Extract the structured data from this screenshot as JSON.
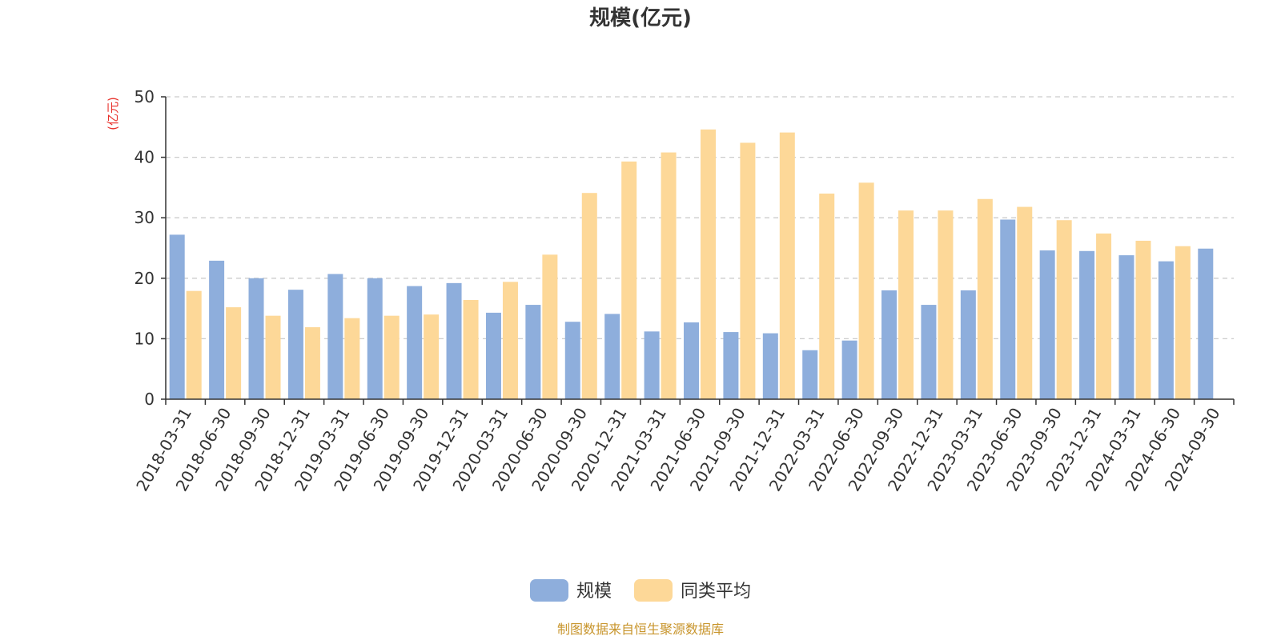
{
  "chart_data": {
    "type": "bar",
    "title": "规模(亿元)",
    "ylabel": "(亿元)",
    "ylim": [
      0,
      50
    ],
    "yticks": [
      0,
      10,
      20,
      30,
      40,
      50
    ],
    "grid": true,
    "legend_position": "bottom",
    "categories": [
      "2018-03-31",
      "2018-06-30",
      "2018-09-30",
      "2018-12-31",
      "2019-03-31",
      "2019-06-30",
      "2019-09-30",
      "2019-12-31",
      "2020-03-31",
      "2020-06-30",
      "2020-09-30",
      "2020-12-31",
      "2021-03-31",
      "2021-06-30",
      "2021-09-30",
      "2021-12-31",
      "2022-03-31",
      "2022-06-30",
      "2022-09-30",
      "2022-12-31",
      "2023-03-31",
      "2023-06-30",
      "2023-09-30",
      "2023-12-31",
      "2024-03-31",
      "2024-06-30",
      "2024-09-30"
    ],
    "series": [
      {
        "name": "规模",
        "color": "#8eaedc",
        "values": [
          27.2,
          22.9,
          20.0,
          18.1,
          20.7,
          20.0,
          18.7,
          19.2,
          14.3,
          15.6,
          12.8,
          14.1,
          11.2,
          12.7,
          11.1,
          10.9,
          8.1,
          9.7,
          18.0,
          15.6,
          18.0,
          29.7,
          24.6,
          24.5,
          23.8,
          22.8,
          24.9
        ]
      },
      {
        "name": "同类平均",
        "color": "#fdd898",
        "values": [
          17.9,
          15.2,
          13.8,
          11.9,
          13.4,
          13.8,
          14.0,
          16.4,
          19.4,
          23.9,
          34.1,
          39.3,
          40.8,
          44.6,
          42.4,
          44.1,
          34.0,
          35.8,
          31.2,
          31.2,
          33.1,
          31.8,
          29.6,
          27.4,
          26.2,
          25.3,
          null
        ]
      }
    ]
  },
  "source_text": "制图数据来自恒生聚源数据库",
  "colors": {
    "unit_label": "#e8302a",
    "source_text": "#c8952c",
    "axis": "#333333",
    "grid": "#cccccc"
  }
}
